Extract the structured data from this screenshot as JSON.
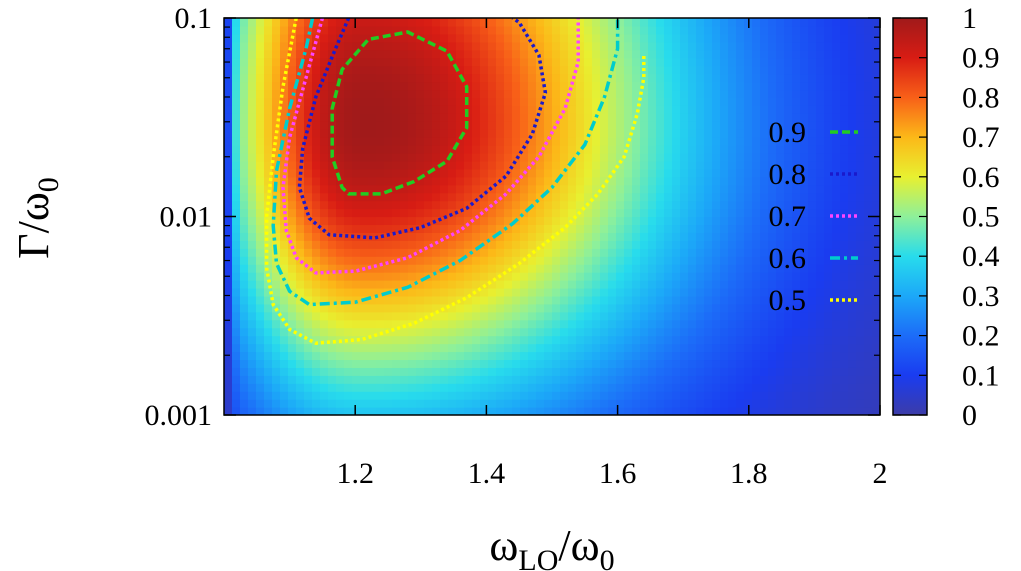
{
  "chart_data": {
    "type": "heatmap",
    "title": "",
    "x_axis": {
      "label_main": "ω",
      "label_main_sub": "LO",
      "label_sep": "/ω",
      "label_sep_sub": "0",
      "range": [
        1.0,
        2.0
      ],
      "ticks": [
        "1.2",
        "1.4",
        "1.6",
        "1.8",
        "2"
      ],
      "tick_values": [
        1.2,
        1.4,
        1.6,
        1.8,
        2.0
      ],
      "scale": "linear"
    },
    "y_axis": {
      "label_main": "Γ/ω",
      "label_main_sub": "0",
      "range": [
        0.001,
        0.1
      ],
      "ticks": [
        "0.001",
        "0.01",
        "0.1"
      ],
      "tick_values": [
        0.001,
        0.01,
        0.1
      ],
      "scale": "log"
    },
    "colorbar": {
      "range": [
        0,
        1
      ],
      "ticks": [
        "0",
        "0.1",
        "0.2",
        "0.3",
        "0.4",
        "0.5",
        "0.6",
        "0.7",
        "0.8",
        "0.9",
        "1"
      ],
      "tick_values": [
        0,
        0.1,
        0.2,
        0.3,
        0.4,
        0.5,
        0.6,
        0.7,
        0.8,
        0.9,
        1.0
      ],
      "colormap": "jet"
    },
    "peak": {
      "x": 1.22,
      "y": 0.03,
      "value": 1.0
    },
    "contours": [
      {
        "level": "0.9",
        "color": "#22cc22",
        "style": "dashed",
        "points": [
          [
            1.19,
            0.013
          ],
          [
            1.24,
            0.013
          ],
          [
            1.29,
            0.015
          ],
          [
            1.34,
            0.019
          ],
          [
            1.37,
            0.028
          ],
          [
            1.37,
            0.045
          ],
          [
            1.34,
            0.068
          ],
          [
            1.28,
            0.085
          ],
          [
            1.22,
            0.078
          ],
          [
            1.18,
            0.055
          ],
          [
            1.165,
            0.035
          ],
          [
            1.165,
            0.02
          ],
          [
            1.18,
            0.014
          ]
        ]
      },
      {
        "level": "0.8",
        "color": "#1a1acc",
        "style": "dotted",
        "points": [
          [
            1.16,
            0.0081
          ],
          [
            1.23,
            0.0078
          ],
          [
            1.3,
            0.0088
          ],
          [
            1.37,
            0.011
          ],
          [
            1.43,
            0.016
          ],
          [
            1.47,
            0.026
          ],
          [
            1.49,
            0.042
          ],
          [
            1.48,
            0.065
          ],
          [
            1.45,
            0.095
          ],
          [
            1.44,
            0.1
          ]
        ],
        "left": [
          [
            1.16,
            0.0081
          ],
          [
            1.13,
            0.0098
          ],
          [
            1.115,
            0.014
          ],
          [
            1.12,
            0.022
          ],
          [
            1.14,
            0.04
          ],
          [
            1.17,
            0.07
          ],
          [
            1.19,
            0.1
          ]
        ]
      },
      {
        "level": "0.7",
        "color": "#ff44ff",
        "style": "dotted",
        "points": [
          [
            1.14,
            0.0052
          ],
          [
            1.2,
            0.0053
          ],
          [
            1.28,
            0.0062
          ],
          [
            1.36,
            0.0085
          ],
          [
            1.43,
            0.013
          ],
          [
            1.48,
            0.02
          ],
          [
            1.52,
            0.035
          ],
          [
            1.54,
            0.06
          ],
          [
            1.54,
            0.1
          ]
        ],
        "left": [
          [
            1.14,
            0.0052
          ],
          [
            1.11,
            0.0062
          ],
          [
            1.095,
            0.0085
          ],
          [
            1.09,
            0.014
          ],
          [
            1.1,
            0.025
          ],
          [
            1.125,
            0.05
          ],
          [
            1.15,
            0.1
          ]
        ]
      },
      {
        "level": "0.6",
        "color": "#00cccc",
        "style": "dashdot",
        "points": [
          [
            1.13,
            0.0036
          ],
          [
            1.2,
            0.0037
          ],
          [
            1.28,
            0.0044
          ],
          [
            1.36,
            0.006
          ],
          [
            1.44,
            0.0092
          ],
          [
            1.5,
            0.014
          ],
          [
            1.55,
            0.023
          ],
          [
            1.58,
            0.04
          ],
          [
            1.6,
            0.07
          ],
          [
            1.6,
            0.1
          ]
        ],
        "left": [
          [
            1.13,
            0.0036
          ],
          [
            1.1,
            0.0042
          ],
          [
            1.08,
            0.0058
          ],
          [
            1.075,
            0.009
          ],
          [
            1.08,
            0.017
          ],
          [
            1.1,
            0.035
          ],
          [
            1.125,
            0.07
          ],
          [
            1.135,
            0.1
          ]
        ]
      },
      {
        "level": "0.5",
        "color": "#ffff00",
        "style": "dotted",
        "points": [
          [
            1.14,
            0.0023
          ],
          [
            1.21,
            0.0024
          ],
          [
            1.29,
            0.0029
          ],
          [
            1.37,
            0.0039
          ],
          [
            1.45,
            0.0058
          ],
          [
            1.52,
            0.0088
          ],
          [
            1.57,
            0.013
          ],
          [
            1.61,
            0.02
          ],
          [
            1.63,
            0.033
          ],
          [
            1.64,
            0.05
          ],
          [
            1.64,
            0.065
          ]
        ],
        "left": [
          [
            1.14,
            0.0023
          ],
          [
            1.1,
            0.0027
          ],
          [
            1.075,
            0.0036
          ],
          [
            1.065,
            0.0055
          ],
          [
            1.065,
            0.01
          ],
          [
            1.075,
            0.02
          ],
          [
            1.09,
            0.045
          ],
          [
            1.11,
            0.1
          ]
        ]
      }
    ],
    "legend": {
      "placement": "right-center",
      "entries": [
        "0.9",
        "0.8",
        "0.7",
        "0.6",
        "0.5"
      ]
    },
    "grid": false
  }
}
